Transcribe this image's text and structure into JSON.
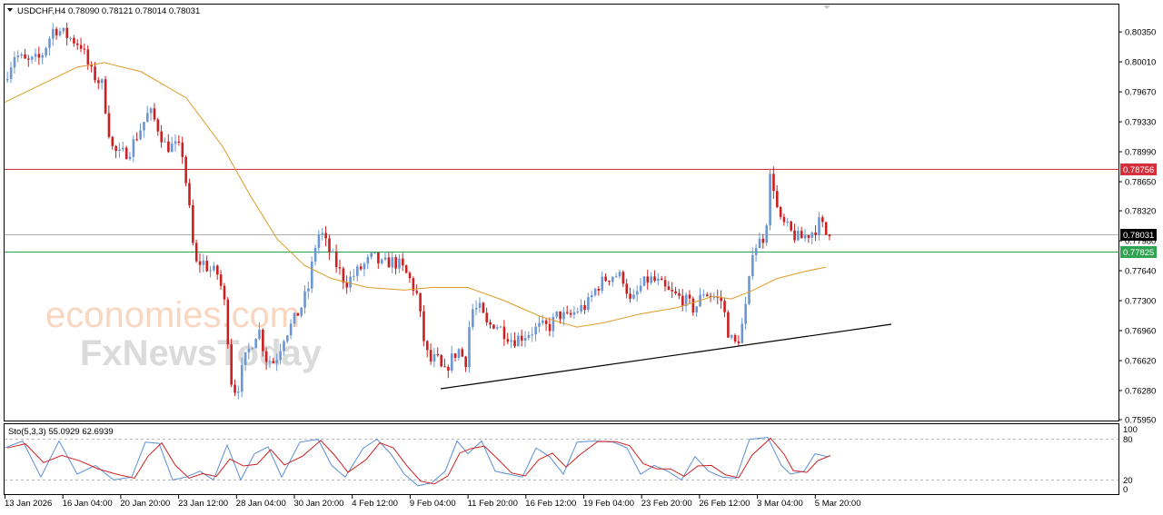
{
  "header": {
    "symbol_line": "USDCHF,H4  0.78090 0.78121 0.78014 0.78031"
  },
  "stochastic": {
    "label": "Sto(5,3,3) 55.0929 62.6939",
    "levels": [
      "100",
      "80",
      "20",
      "0"
    ]
  },
  "watermark": {
    "line1": "economies.com",
    "line2": "FxNewsToday"
  },
  "colors": {
    "bull": "#6a96d4",
    "bear": "#cc1f1f",
    "ma": "#e09a2a",
    "resistance": "#d4303c",
    "support": "#2fa34f",
    "current": "#b0b0b0",
    "stoch_main": "#5b8fd6",
    "stoch_signal": "#cc2222"
  },
  "chart_data": {
    "type": "candlestick",
    "symbol": "USDCHF",
    "timeframe": "H4",
    "ohlc_last": {
      "open": 0.7809,
      "high": 0.78121,
      "low": 0.78014,
      "close": 0.78031
    },
    "y_ticks": [
      "0.80350",
      "0.80010",
      "0.79670",
      "0.79330",
      "0.78990",
      "0.78650",
      "0.78320",
      "0.77980",
      "0.77640",
      "0.77300",
      "0.76960",
      "0.76620",
      "0.76280",
      "0.75950"
    ],
    "ylim": [
      0.7595,
      0.8065
    ],
    "x_ticks": [
      "13 Jan 2026",
      "16 Jan 04:00",
      "20 Jan 20:00",
      "23 Jan 12:00",
      "28 Jan 04:00",
      "30 Jan 20:00",
      "4 Feb 12:00",
      "9 Feb 04:00",
      "11 Feb 20:00",
      "16 Feb 12:00",
      "19 Feb 04:00",
      "23 Feb 20:00",
      "26 Feb 12:00",
      "3 Mar 04:00",
      "5 Mar 20:00"
    ],
    "levels": [
      {
        "name": "resistance",
        "value": 0.78756,
        "label": "0.78756"
      },
      {
        "name": "current",
        "value": 0.78031,
        "label": "0.78031"
      },
      {
        "name": "support",
        "value": 0.77825,
        "label": "0.77825"
      }
    ],
    "trendline": {
      "from": {
        "x": "9 Feb 04:00",
        "y": 0.7628
      },
      "to": {
        "x": "5 Mar 20:00",
        "y": 0.77
      }
    },
    "price_path": [
      [
        0,
        0.798
      ],
      [
        12,
        0.801
      ],
      [
        25,
        0.8
      ],
      [
        40,
        0.8005
      ],
      [
        55,
        0.804
      ],
      [
        70,
        0.803
      ],
      [
        85,
        0.802
      ],
      [
        95,
        0.799
      ],
      [
        108,
        0.7975
      ],
      [
        118,
        0.7905
      ],
      [
        126,
        0.7895
      ],
      [
        138,
        0.79
      ],
      [
        150,
        0.7925
      ],
      [
        160,
        0.7945
      ],
      [
        168,
        0.793
      ],
      [
        178,
        0.7905
      ],
      [
        188,
        0.7905
      ],
      [
        196,
        0.79
      ],
      [
        202,
        0.785
      ],
      [
        206,
        0.7815
      ],
      [
        210,
        0.777
      ],
      [
        218,
        0.7775
      ],
      [
        226,
        0.7765
      ],
      [
        236,
        0.776
      ],
      [
        244,
        0.772
      ],
      [
        250,
        0.764
      ],
      [
        256,
        0.7625
      ],
      [
        264,
        0.766
      ],
      [
        272,
        0.768
      ],
      [
        280,
        0.77
      ],
      [
        288,
        0.7665
      ],
      [
        298,
        0.766
      ],
      [
        308,
        0.769
      ],
      [
        318,
        0.7705
      ],
      [
        328,
        0.7725
      ],
      [
        335,
        0.7745
      ],
      [
        342,
        0.779
      ],
      [
        348,
        0.781
      ],
      [
        356,
        0.779
      ],
      [
        366,
        0.777
      ],
      [
        376,
        0.775
      ],
      [
        386,
        0.776
      ],
      [
        396,
        0.777
      ],
      [
        406,
        0.778
      ],
      [
        416,
        0.777
      ],
      [
        426,
        0.7775
      ],
      [
        436,
        0.777
      ],
      [
        446,
        0.7755
      ],
      [
        455,
        0.7735
      ],
      [
        461,
        0.769
      ],
      [
        468,
        0.766
      ],
      [
        476,
        0.7665
      ],
      [
        484,
        0.7645
      ],
      [
        490,
        0.766
      ],
      [
        500,
        0.7675
      ],
      [
        508,
        0.766
      ],
      [
        514,
        0.772
      ],
      [
        524,
        0.772
      ],
      [
        532,
        0.77
      ],
      [
        540,
        0.7705
      ],
      [
        550,
        0.7695
      ],
      [
        560,
        0.7685
      ],
      [
        570,
        0.769
      ],
      [
        580,
        0.7695
      ],
      [
        590,
        0.77
      ],
      [
        600,
        0.77
      ],
      [
        610,
        0.7715
      ],
      [
        620,
        0.771
      ],
      [
        632,
        0.772
      ],
      [
        642,
        0.7725
      ],
      [
        652,
        0.7745
      ],
      [
        662,
        0.7755
      ],
      [
        672,
        0.776
      ],
      [
        682,
        0.7755
      ],
      [
        690,
        0.7725
      ],
      [
        700,
        0.7745
      ],
      [
        710,
        0.7755
      ],
      [
        720,
        0.775
      ],
      [
        730,
        0.774
      ],
      [
        740,
        0.7735
      ],
      [
        750,
        0.773
      ],
      [
        760,
        0.772
      ],
      [
        770,
        0.774
      ],
      [
        780,
        0.7735
      ],
      [
        790,
        0.773
      ],
      [
        798,
        0.769
      ],
      [
        804,
        0.768
      ],
      [
        810,
        0.769
      ],
      [
        818,
        0.773
      ],
      [
        824,
        0.779
      ],
      [
        830,
        0.7795
      ],
      [
        838,
        0.7805
      ],
      [
        843,
        0.787
      ],
      [
        847,
        0.786
      ],
      [
        853,
        0.782
      ],
      [
        860,
        0.7815
      ],
      [
        868,
        0.7805
      ],
      [
        876,
        0.78
      ],
      [
        884,
        0.7805
      ],
      [
        892,
        0.781
      ],
      [
        898,
        0.782
      ],
      [
        906,
        0.7803
      ]
    ],
    "ma_path": [
      [
        0,
        0.7955
      ],
      [
        40,
        0.7975
      ],
      [
        80,
        0.7995
      ],
      [
        110,
        0.8
      ],
      [
        150,
        0.799
      ],
      [
        200,
        0.796
      ],
      [
        240,
        0.7905
      ],
      [
        270,
        0.785
      ],
      [
        300,
        0.78
      ],
      [
        330,
        0.777
      ],
      [
        360,
        0.7755
      ],
      [
        400,
        0.7745
      ],
      [
        440,
        0.7742
      ],
      [
        470,
        0.7745
      ],
      [
        510,
        0.7745
      ],
      [
        550,
        0.773
      ],
      [
        590,
        0.7712
      ],
      [
        630,
        0.77
      ],
      [
        660,
        0.7705
      ],
      [
        700,
        0.7715
      ],
      [
        740,
        0.7722
      ],
      [
        780,
        0.7735
      ],
      [
        800,
        0.7732
      ],
      [
        820,
        0.774
      ],
      [
        850,
        0.7755
      ],
      [
        880,
        0.7763
      ],
      [
        904,
        0.7768
      ]
    ],
    "stochastic_path": [
      [
        0,
        70
      ],
      [
        20,
        82
      ],
      [
        40,
        20
      ],
      [
        60,
        82
      ],
      [
        80,
        25
      ],
      [
        100,
        40
      ],
      [
        120,
        15
      ],
      [
        140,
        20
      ],
      [
        155,
        80
      ],
      [
        170,
        78
      ],
      [
        185,
        15
      ],
      [
        200,
        20
      ],
      [
        215,
        30
      ],
      [
        230,
        15
      ],
      [
        245,
        75
      ],
      [
        260,
        15
      ],
      [
        275,
        60
      ],
      [
        290,
        72
      ],
      [
        305,
        20
      ],
      [
        325,
        80
      ],
      [
        345,
        85
      ],
      [
        360,
        40
      ],
      [
        375,
        20
      ],
      [
        395,
        70
      ],
      [
        410,
        85
      ],
      [
        425,
        60
      ],
      [
        440,
        25
      ],
      [
        455,
        5
      ],
      [
        470,
        10
      ],
      [
        485,
        30
      ],
      [
        498,
        82
      ],
      [
        510,
        60
      ],
      [
        525,
        82
      ],
      [
        540,
        30
      ],
      [
        555,
        25
      ],
      [
        570,
        20
      ],
      [
        585,
        70
      ],
      [
        600,
        55
      ],
      [
        615,
        25
      ],
      [
        630,
        80
      ],
      [
        650,
        82
      ],
      [
        670,
        80
      ],
      [
        685,
        70
      ],
      [
        700,
        25
      ],
      [
        715,
        40
      ],
      [
        730,
        30
      ],
      [
        745,
        15
      ],
      [
        760,
        55
      ],
      [
        775,
        30
      ],
      [
        790,
        20
      ],
      [
        805,
        18
      ],
      [
        820,
        85
      ],
      [
        840,
        88
      ],
      [
        855,
        40
      ],
      [
        865,
        25
      ],
      [
        880,
        30
      ],
      [
        892,
        60
      ],
      [
        906,
        55
      ]
    ]
  }
}
